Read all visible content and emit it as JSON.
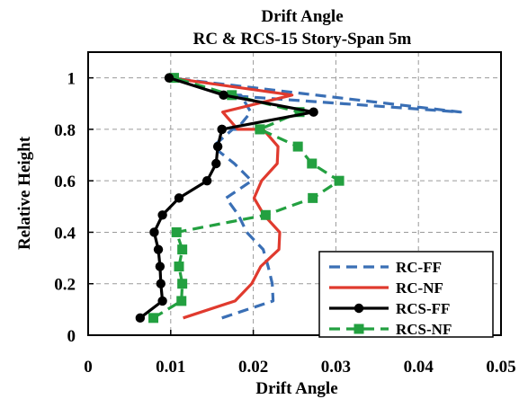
{
  "chart_data": {
    "type": "line",
    "title": "Drift Angle",
    "subtitle": "RC & RCS-15 Story-Span 5m",
    "xlabel": "Drift Angle",
    "ylabel": "Relative Height",
    "xlim": [
      0,
      0.05
    ],
    "ylim": [
      0,
      1.1
    ],
    "x_ticks": [
      "0",
      "0.01",
      "0.02",
      "0.03",
      "0.04",
      "0.05"
    ],
    "y_ticks": [
      "0",
      "0.2",
      "0.4",
      "0.6",
      "0.8",
      "1"
    ],
    "grid": true,
    "legend_position": "bottom-right",
    "series": [
      {
        "name": "RC-FF",
        "color": "#3a6fb5",
        "style": "dashed",
        "marker": "none",
        "x": [
          0.0162,
          0.0224,
          0.0223,
          0.0218,
          0.0212,
          0.0192,
          0.0182,
          0.0167,
          0.0198,
          0.0177,
          0.0151,
          0.0175,
          0.018,
          0.0197,
          0.0185,
          0.0163,
          0.0451,
          0.0098
        ],
        "y": [
          0.067,
          0.133,
          0.2,
          0.267,
          0.333,
          0.4,
          0.467,
          0.533,
          0.6,
          0.667,
          0.733,
          0.8,
          0.8,
          0.867,
          0.933,
          0.933,
          0.867,
          1.0
        ]
      },
      {
        "name": "RC-NF",
        "color": "#e03a2e",
        "style": "solid",
        "marker": "none",
        "x": [
          0.0115,
          0.0178,
          0.0198,
          0.0209,
          0.0231,
          0.0232,
          0.0213,
          0.0201,
          0.021,
          0.0229,
          0.023,
          0.0212,
          0.0181,
          0.0163,
          0.0247,
          0.0099
        ],
        "y": [
          0.067,
          0.133,
          0.2,
          0.267,
          0.333,
          0.4,
          0.467,
          0.533,
          0.6,
          0.667,
          0.733,
          0.8,
          0.8,
          0.867,
          0.933,
          1.0
        ]
      },
      {
        "name": "RCS-FF",
        "color": "#000000",
        "style": "solid",
        "marker": "circle",
        "x": [
          0.0063,
          0.009,
          0.0088,
          0.0087,
          0.0085,
          0.008,
          0.009,
          0.011,
          0.0144,
          0.0155,
          0.0157,
          0.0162,
          0.0162,
          0.0273,
          0.0164,
          0.0098
        ],
        "y": [
          0.067,
          0.133,
          0.2,
          0.267,
          0.333,
          0.4,
          0.467,
          0.533,
          0.6,
          0.667,
          0.733,
          0.8,
          0.8,
          0.867,
          0.933,
          1.0
        ]
      },
      {
        "name": "RCS-NF",
        "color": "#23a040",
        "style": "dashed",
        "marker": "square",
        "x": [
          0.0079,
          0.0113,
          0.0114,
          0.011,
          0.0114,
          0.0107,
          0.0215,
          0.0272,
          0.0304,
          0.0271,
          0.0254,
          0.0208,
          0.0208,
          0.0256,
          0.0174,
          0.0104
        ],
        "y": [
          0.067,
          0.133,
          0.2,
          0.267,
          0.333,
          0.4,
          0.467,
          0.533,
          0.6,
          0.667,
          0.733,
          0.8,
          0.8,
          0.867,
          0.933,
          1.0
        ]
      }
    ]
  }
}
